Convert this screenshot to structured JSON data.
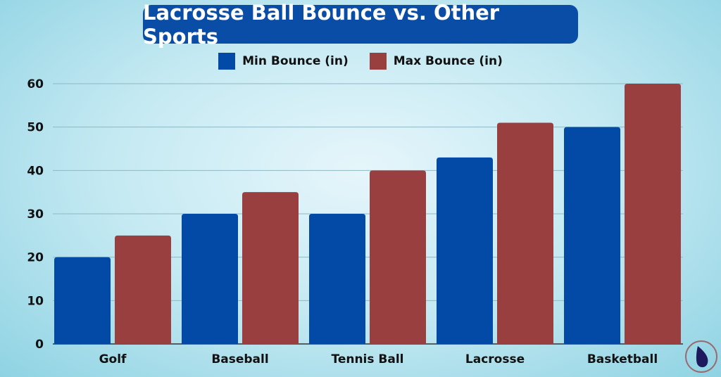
{
  "chart_data": {
    "type": "bar",
    "title": "Lacrosse Ball Bounce vs. Other Sports",
    "categories": [
      "Golf",
      "Baseball",
      "Tennis Ball",
      "Lacrosse",
      "Basketball"
    ],
    "series": [
      {
        "name": "Min Bounce (in)",
        "values": [
          20,
          30,
          30,
          43,
          50
        ],
        "color": "#034aa6"
      },
      {
        "name": "Max Bounce (in)",
        "values": [
          25,
          35,
          40,
          51,
          60
        ],
        "color": "#9a3f3f"
      }
    ],
    "yticks": [
      0,
      10,
      20,
      30,
      40,
      50,
      60
    ],
    "ylim": [
      0,
      60
    ],
    "grid": true,
    "legend": "top"
  }
}
